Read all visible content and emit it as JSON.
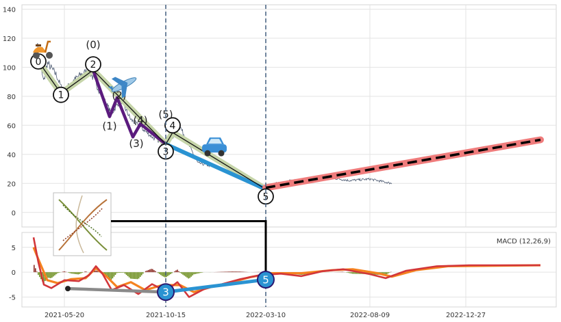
{
  "chart_data": [
    {
      "type": "line",
      "panel": "price",
      "ylim": [
        -10,
        143
      ],
      "yticks": [
        0,
        20,
        40,
        60,
        80,
        100,
        120,
        140
      ],
      "xticks": [
        "2021-05-20",
        "2021-10-15",
        "2022-03-10",
        "2022-08-09",
        "2022-12-27"
      ],
      "grid": true,
      "vertical_markers": [
        "2021-10-15",
        "2022-03-10"
      ],
      "price_anchors": [
        {
          "x": "2021-04-10",
          "y": 118
        },
        {
          "x": "2021-04-13",
          "y": 104
        },
        {
          "x": "2021-04-20",
          "y": 90
        },
        {
          "x": "2021-04-25",
          "y": 103
        },
        {
          "x": "2021-05-08",
          "y": 95
        },
        {
          "x": "2021-05-18",
          "y": 83
        },
        {
          "x": "2021-06-01",
          "y": 90
        },
        {
          "x": "2021-06-10",
          "y": 94
        },
        {
          "x": "2021-06-25",
          "y": 98
        },
        {
          "x": "2021-07-10",
          "y": 84
        },
        {
          "x": "2021-07-28",
          "y": 68
        },
        {
          "x": "2021-08-10",
          "y": 78
        },
        {
          "x": "2021-08-25",
          "y": 64
        },
        {
          "x": "2021-09-10",
          "y": 58
        },
        {
          "x": "2021-09-25",
          "y": 52
        },
        {
          "x": "2021-10-12",
          "y": 47
        },
        {
          "x": "2021-10-25",
          "y": 52
        },
        {
          "x": "2021-11-05",
          "y": 59
        },
        {
          "x": "2021-11-15",
          "y": 49
        },
        {
          "x": "2021-12-01",
          "y": 34
        },
        {
          "x": "2021-12-20",
          "y": 32
        },
        {
          "x": "2022-01-10",
          "y": 29
        },
        {
          "x": "2022-02-01",
          "y": 26
        },
        {
          "x": "2022-02-20",
          "y": 22
        },
        {
          "x": "2022-03-10",
          "y": 17
        },
        {
          "x": "2022-03-25",
          "y": 20
        },
        {
          "x": "2022-04-15",
          "y": 22
        },
        {
          "x": "2022-05-15",
          "y": 21
        },
        {
          "x": "2022-06-10",
          "y": 24
        },
        {
          "x": "2022-07-10",
          "y": 22
        },
        {
          "x": "2022-08-09",
          "y": 23
        },
        {
          "x": "2022-09-10",
          "y": 20
        }
      ],
      "wave_points": [
        {
          "label": "0",
          "x": "2021-04-12",
          "y": 104
        },
        {
          "label": "1",
          "x": "2021-05-15",
          "y": 81
        },
        {
          "label": "2",
          "x": "2021-07-01",
          "y": 102
        },
        {
          "label": "3",
          "x": "2021-10-15",
          "y": 42
        },
        {
          "label": "4",
          "x": "2021-10-25",
          "y": 60
        },
        {
          "label": "5",
          "x": "2022-03-10",
          "y": 11
        }
      ],
      "subwave_labels": [
        {
          "label": "(0)",
          "x": "2021-07-01",
          "y": 116
        },
        {
          "label": "(1)",
          "x": "2021-07-25",
          "y": 60
        },
        {
          "label": "(2)",
          "x": "2021-08-08",
          "y": 81
        },
        {
          "label": "(3)",
          "x": "2021-09-02",
          "y": 48
        },
        {
          "label": "(4)",
          "x": "2021-09-08",
          "y": 64
        },
        {
          "label": "(5)",
          "x": "2021-10-15",
          "y": 68
        }
      ],
      "main_wave_line": [
        {
          "x": "2021-04-12",
          "y": 104
        },
        {
          "x": "2021-05-15",
          "y": 82
        },
        {
          "x": "2021-07-01",
          "y": 98
        },
        {
          "x": "2021-10-15",
          "y": 47
        },
        {
          "x": "2021-10-25",
          "y": 55
        },
        {
          "x": "2022-03-10",
          "y": 16
        }
      ],
      "subwave_line": [
        {
          "x": "2021-07-01",
          "y": 98
        },
        {
          "x": "2021-07-25",
          "y": 66
        },
        {
          "x": "2021-08-05",
          "y": 79
        },
        {
          "x": "2021-08-28",
          "y": 52
        },
        {
          "x": "2021-09-08",
          "y": 61
        },
        {
          "x": "2021-10-15",
          "y": 47
        }
      ],
      "correction_line": [
        {
          "x": "2021-10-15",
          "y": 47
        },
        {
          "x": "2022-03-10",
          "y": 16
        }
      ],
      "forecast_line": [
        {
          "x": "2022-03-10",
          "y": 17
        },
        {
          "x": "2023-04-15",
          "y": 50
        }
      ],
      "icons": [
        {
          "name": "scooter-icon",
          "x": "2021-04-18",
          "y": 112
        },
        {
          "name": "airplane-icon",
          "x": "2021-08-15",
          "y": 88
        },
        {
          "name": "car-icon",
          "x": "2021-12-25",
          "y": 45
        }
      ],
      "connector_from_y": -6,
      "colors": {
        "price": "#4a5870",
        "wave_band": "#c6d5a9",
        "wave": "#111111",
        "subwave": "#5b1b7e",
        "correction": "#2a93d2",
        "forecast_band": "#ef7c7c",
        "forecast": "#000000",
        "marker": "#4d6785"
      }
    },
    {
      "type": "bar",
      "panel": "macd",
      "legend": "MACD (12,26,9)",
      "ylim": [
        -7,
        8
      ],
      "yticks": [
        -5,
        0,
        5
      ],
      "grid": true,
      "macd_line": [
        {
          "x": "2021-04-05",
          "y": 7
        },
        {
          "x": "2021-04-12",
          "y": 2
        },
        {
          "x": "2021-04-20",
          "y": -2.5
        },
        {
          "x": "2021-05-01",
          "y": -3.2
        },
        {
          "x": "2021-05-20",
          "y": -1.6
        },
        {
          "x": "2021-06-10",
          "y": -1.8
        },
        {
          "x": "2021-06-25",
          "y": -0.6
        },
        {
          "x": "2021-07-05",
          "y": 1.2
        },
        {
          "x": "2021-07-15",
          "y": -0.4
        },
        {
          "x": "2021-07-28",
          "y": -3.6
        },
        {
          "x": "2021-08-15",
          "y": -2.6
        },
        {
          "x": "2021-09-05",
          "y": -4.4
        },
        {
          "x": "2021-09-25",
          "y": -2.4
        },
        {
          "x": "2021-10-15",
          "y": -3.8
        },
        {
          "x": "2021-11-01",
          "y": -2.0
        },
        {
          "x": "2021-11-18",
          "y": -5.0
        },
        {
          "x": "2021-12-10",
          "y": -3.4
        },
        {
          "x": "2022-01-05",
          "y": -2.4
        },
        {
          "x": "2022-02-01",
          "y": -1.4
        },
        {
          "x": "2022-03-01",
          "y": -0.6
        },
        {
          "x": "2022-04-01",
          "y": -0.3
        },
        {
          "x": "2022-05-01",
          "y": -0.8
        },
        {
          "x": "2022-06-01",
          "y": 0.2
        },
        {
          "x": "2022-07-01",
          "y": 0.6
        },
        {
          "x": "2022-08-09",
          "y": -0.4
        },
        {
          "x": "2022-09-01",
          "y": -1.2
        },
        {
          "x": "2022-10-01",
          "y": 0.3
        },
        {
          "x": "2022-11-15",
          "y": 1.2
        },
        {
          "x": "2023-01-01",
          "y": 1.4
        },
        {
          "x": "2023-04-15",
          "y": 1.4
        }
      ],
      "signal_line": [
        {
          "x": "2021-04-05",
          "y": 5.0
        },
        {
          "x": "2021-04-12",
          "y": 2.6
        },
        {
          "x": "2021-04-25",
          "y": -1.6
        },
        {
          "x": "2021-05-10",
          "y": -2.2
        },
        {
          "x": "2021-05-30",
          "y": -1.4
        },
        {
          "x": "2021-06-20",
          "y": -1.2
        },
        {
          "x": "2021-07-05",
          "y": 0.8
        },
        {
          "x": "2021-07-20",
          "y": -0.8
        },
        {
          "x": "2021-08-05",
          "y": -3.0
        },
        {
          "x": "2021-08-25",
          "y": -2.0
        },
        {
          "x": "2021-09-15",
          "y": -3.6
        },
        {
          "x": "2021-10-10",
          "y": -2.6
        },
        {
          "x": "2021-11-05",
          "y": -2.6
        },
        {
          "x": "2021-11-25",
          "y": -4.0
        },
        {
          "x": "2021-12-20",
          "y": -3.0
        },
        {
          "x": "2022-01-20",
          "y": -2.0
        },
        {
          "x": "2022-02-15",
          "y": -1.0
        },
        {
          "x": "2022-03-20",
          "y": -0.2
        },
        {
          "x": "2022-05-01",
          "y": -0.2
        },
        {
          "x": "2022-06-15",
          "y": 0.4
        },
        {
          "x": "2022-07-15",
          "y": 0.6
        },
        {
          "x": "2022-08-20",
          "y": -0.2
        },
        {
          "x": "2022-09-10",
          "y": -0.9
        },
        {
          "x": "2022-10-15",
          "y": 0.4
        },
        {
          "x": "2022-12-01",
          "y": 1.2
        },
        {
          "x": "2023-04-15",
          "y": 1.4
        }
      ],
      "histogram_range": [
        "2021-04-05",
        "2022-09-10"
      ],
      "markers": [
        {
          "label": "3",
          "x": "2021-10-15",
          "y": -4.0
        },
        {
          "label": "5",
          "x": "2022-03-10",
          "y": -1.5
        }
      ],
      "grey_segment": [
        {
          "x": "2021-05-25",
          "y": -3.3
        },
        {
          "x": "2021-10-15",
          "y": -4.0
        }
      ],
      "blue_segment": [
        {
          "x": "2021-10-15",
          "y": -4.0
        },
        {
          "x": "2022-03-10",
          "y": -1.5
        }
      ],
      "colors": {
        "macd": "#d2363a",
        "signal": "#f5821f",
        "hist_pos": "#8b2b24",
        "hist_neg": "#6c8e1e",
        "marker_fill": "#2a93d2",
        "marker_edge": "#2a1870",
        "segment_grey": "#8a8a8a"
      }
    }
  ]
}
